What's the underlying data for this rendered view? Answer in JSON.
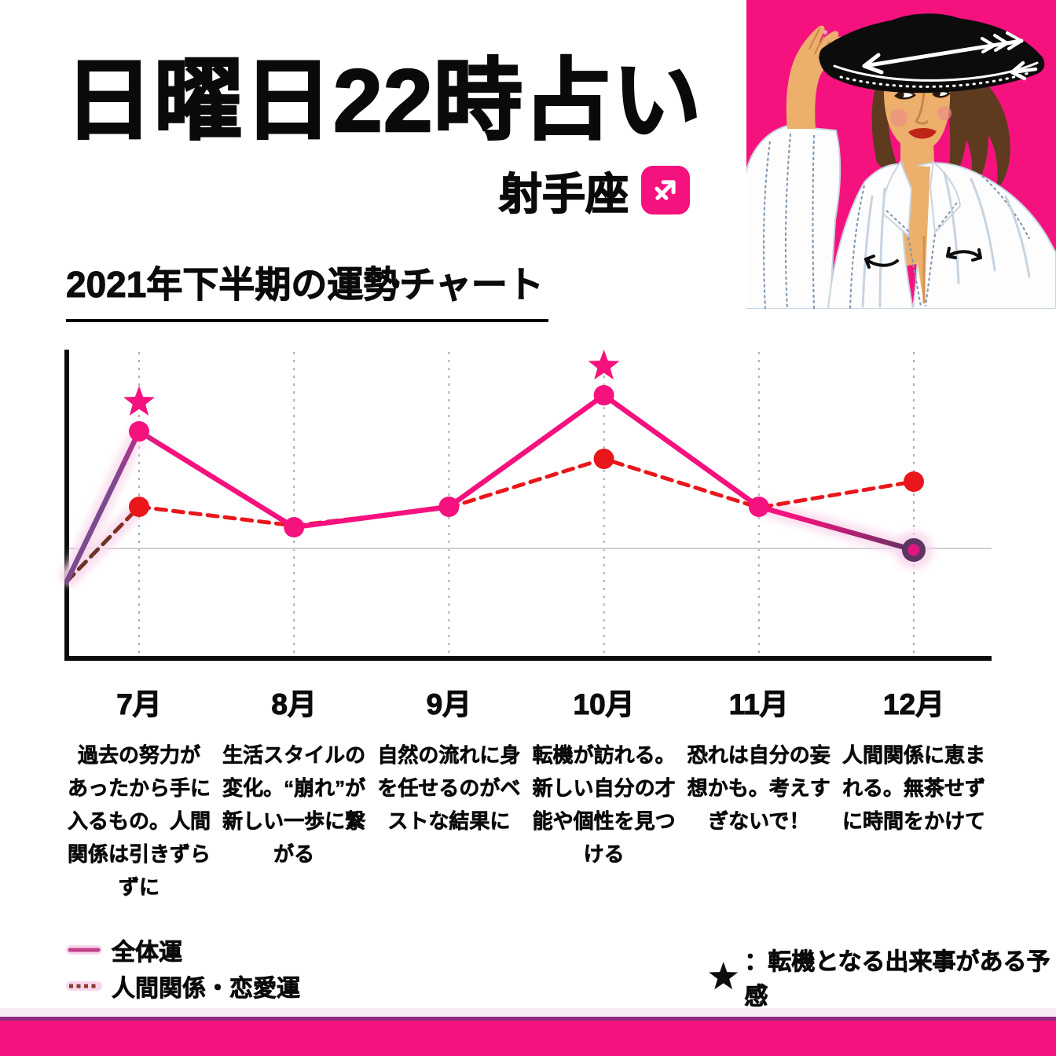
{
  "page": {
    "title": "日曜日22時占い",
    "zodiac_label": "射手座",
    "zodiac_symbol": "sagittarius",
    "section_heading": "2021年下半期の運勢チャート"
  },
  "chart_data": {
    "type": "line",
    "title": "2021年下半期の運勢チャート",
    "categories": [
      "7月",
      "8月",
      "9月",
      "10月",
      "11月",
      "12月"
    ],
    "baseline": 0,
    "ylim": [
      -1.4,
      2.5
    ],
    "grid": "vertical-dotted",
    "legend_position": "bottom-left",
    "note": "values relative to gray baseline = 0, arbitrary fortune units",
    "series": [
      {
        "name": "全体運",
        "style": "solid",
        "color": "#F5117E",
        "gradient_start_color": "#7B4A8F",
        "gradient_end_color": "#5E3462",
        "start_value": -0.42,
        "values": [
          1.49,
          0.27,
          0.53,
          1.95,
          0.53,
          -0.02
        ],
        "dots": [
          1,
          1,
          1,
          1,
          1,
          1
        ],
        "end_dot": {
          "outer_color": "#5E3462",
          "inner_color": "#DD1680"
        },
        "star_indices": [
          0,
          3
        ]
      },
      {
        "name": "人間関係・恋愛運",
        "style": "dashed",
        "color": "#E9161B",
        "gradient_start_color": "#6B3420",
        "gradient_end_color": "#E9161B",
        "start_value": -0.42,
        "values": [
          0.53,
          0.29,
          0.52,
          1.14,
          0.52,
          0.85
        ],
        "dots": [
          1,
          0,
          0,
          1,
          0,
          1
        ],
        "star_indices": []
      }
    ]
  },
  "months": [
    {
      "label": "7月",
      "description_lines": [
        "過去の努力が",
        "あったから手に",
        "入るもの。人間",
        "関係は引きずら",
        "ずに"
      ]
    },
    {
      "label": "8月",
      "description_lines": [
        "生活スタイルの",
        "変化。“崩れ”が",
        "新しい一歩に繋",
        "がる"
      ]
    },
    {
      "label": "9月",
      "description_lines": [
        "自然の流れに身",
        "を任せるのがベ",
        "ストな結果に"
      ]
    },
    {
      "label": "10月",
      "description_lines": [
        "転機が訪れる。",
        "新しい自分の才",
        "能や個性を見つ",
        "ける"
      ]
    },
    {
      "label": "11月",
      "description_lines": [
        "恐れは自分の妄",
        "想かも。考えす",
        "ぎないで！"
      ]
    },
    {
      "label": "12月",
      "description_lines": [
        "人間関係に恵ま",
        "れる。無茶せず",
        "に時間をかけて"
      ]
    }
  ],
  "legend": {
    "items": [
      {
        "label": "全体運",
        "style": "solid"
      },
      {
        "label": "人間関係・恋愛運",
        "style": "dashed"
      }
    ]
  },
  "footnote": {
    "star": "★",
    "text": "：転機となる出来事がある予感"
  },
  "colors": {
    "brand_pink": "#F5117E",
    "red": "#E9161B",
    "purple": "#7B4A8F",
    "dark_purple": "#5E3462",
    "dark_red": "#6B3420",
    "legend_solid_core": "#C2418C",
    "legend_dash_core": "#8C3A2B",
    "glow_pink": "#F8D7EC",
    "grid_gray": "#ADADAD",
    "baseline_gray": "#CFCFCF",
    "strip_pale": "#F8E9F5",
    "strip_purple": "#8E2C7F",
    "text_black": "#0D0D0D"
  }
}
